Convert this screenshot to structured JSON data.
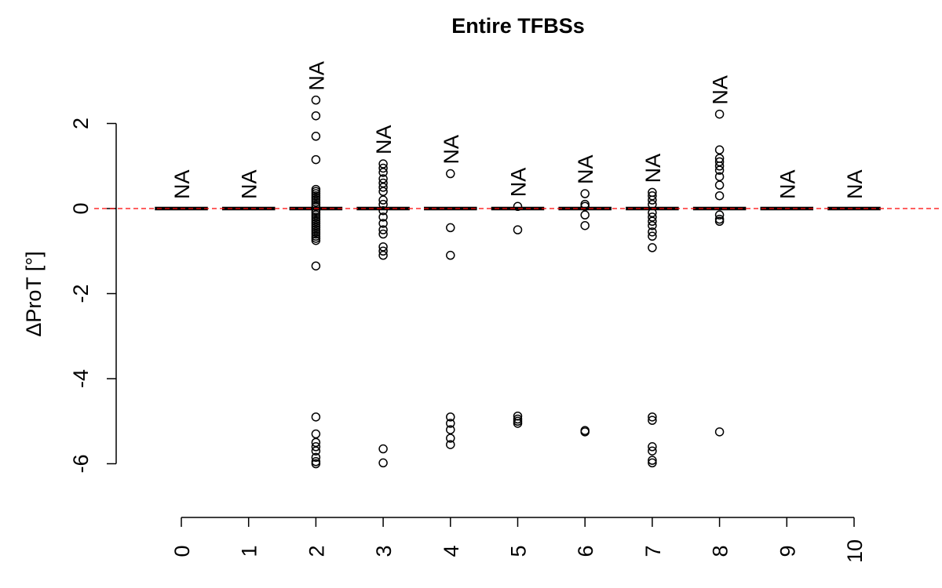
{
  "chart_data": {
    "type": "boxplot",
    "title": "Entire TFBSs",
    "xlabel": "",
    "ylabel": "ΔProT [°]",
    "ylim": [
      -7.2,
      3.9
    ],
    "yticks": [
      -6,
      -4,
      -2,
      0,
      2
    ],
    "ytick_labels": [
      "-6",
      "-4",
      "-2",
      "0",
      "2"
    ],
    "categories": [
      "0",
      "1",
      "2",
      "3",
      "4",
      "5",
      "6",
      "7",
      "8",
      "9",
      "10"
    ],
    "medians": [
      0,
      0,
      0,
      0,
      0,
      0,
      0,
      0,
      0,
      0,
      0
    ],
    "box_q1": [
      0,
      0,
      0,
      0,
      0,
      0,
      0,
      0,
      0,
      0,
      0
    ],
    "box_q3": [
      0,
      0,
      0,
      0,
      0,
      0,
      0,
      0,
      0,
      0,
      0
    ],
    "na_labels": [
      "NA",
      "NA",
      "NA",
      "NA",
      "NA",
      "NA",
      "NA",
      "NA",
      "NA",
      "NA",
      "NA"
    ],
    "outliers": [
      [],
      [],
      [
        2.55,
        2.18,
        1.7,
        1.15,
        0.45,
        0.4,
        0.35,
        0.3,
        0.25,
        0.2,
        0.15,
        0.1,
        0.05,
        -0.05,
        -0.1,
        -0.15,
        -0.2,
        -0.25,
        -0.3,
        -0.35,
        -0.4,
        -0.45,
        -0.5,
        -0.55,
        -0.6,
        -0.65,
        -0.7,
        -0.75,
        -1.35,
        -4.9,
        -5.3,
        -5.5,
        -5.6,
        -5.7,
        -5.85,
        -5.95,
        -6.0
      ],
      [
        1.05,
        0.95,
        0.85,
        0.7,
        0.6,
        0.5,
        0.4,
        0.2,
        0.1,
        -0.05,
        -0.2,
        -0.35,
        -0.5,
        -0.6,
        -0.9,
        -1.0,
        -1.1,
        -5.65,
        -5.98
      ],
      [
        0.82,
        -0.45,
        -1.1,
        -4.9,
        -5.05,
        -5.2,
        -5.4,
        -5.55
      ],
      [
        0.05,
        -0.5,
        -4.88,
        -4.95,
        -5.0,
        -5.05
      ],
      [
        0.35,
        0.1,
        0.05,
        -0.15,
        -0.4,
        -5.22,
        -5.25
      ],
      [
        0.38,
        0.3,
        0.2,
        0.1,
        -0.1,
        -0.2,
        -0.3,
        -0.4,
        -0.55,
        -0.65,
        -0.92,
        -4.9,
        -4.98,
        -5.6,
        -5.7,
        -5.92,
        -5.98
      ],
      [
        2.22,
        1.38,
        1.18,
        1.1,
        1.0,
        0.9,
        0.75,
        0.55,
        0.3,
        -0.15,
        -0.25,
        -0.3,
        -5.25
      ],
      [],
      []
    ],
    "reference_line": {
      "y": 0,
      "style": "dashed",
      "color": "#ff0000"
    },
    "grid": false
  }
}
